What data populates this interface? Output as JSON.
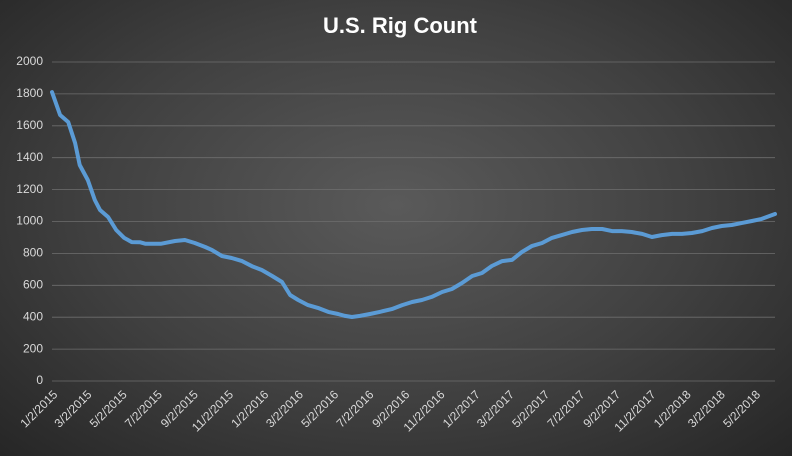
{
  "chart_data": {
    "type": "line",
    "title": "U.S. Rig Count",
    "x": [
      "1/2/2015",
      "1/16/2015",
      "1/30/2015",
      "2/11/2015",
      "2/19/2015",
      "3/5/2015",
      "3/17/2015",
      "3/26/2015",
      "4/9/2015",
      "4/23/2015",
      "5/7/2015",
      "5/20/2015",
      "6/3/2015",
      "6/13/2015",
      "7/9/2015",
      "8/3/2015",
      "8/20/2015",
      "9/6/2015",
      "9/24/2015",
      "10/6/2015",
      "10/23/2015",
      "11/9/2015",
      "11/27/2015",
      "12/14/2015",
      "12/31/2015",
      "1/18/2016",
      "2/4/2016",
      "2/18/2016",
      "3/3/2016",
      "3/20/2016",
      "4/6/2016",
      "4/24/2016",
      "5/11/2016",
      "5/23/2016",
      "6/4/2016",
      "6/18/2016",
      "7/5/2016",
      "7/22/2016",
      "8/12/2016",
      "8/30/2016",
      "9/16/2016",
      "10/3/2016",
      "10/20/2016",
      "11/7/2016",
      "11/24/2016",
      "12/11/2016",
      "12/29/2016",
      "1/15/2017",
      "2/1/2017",
      "2/19/2017",
      "3/8/2017",
      "3/25/2017",
      "4/11/2017",
      "4/29/2017",
      "5/16/2017",
      "6/2/2017",
      "6/20/2017",
      "7/7/2017",
      "7/24/2017",
      "8/11/2017",
      "8/28/2017",
      "9/14/2017",
      "10/1/2017",
      "10/19/2017",
      "11/5/2017",
      "11/22/2017",
      "12/10/2017",
      "12/27/2017",
      "1/13/2018",
      "1/31/2018",
      "2/17/2018",
      "3/6/2018",
      "3/23/2018",
      "4/10/2018",
      "4/27/2018",
      "5/14/2018",
      "6/6/2018"
    ],
    "series": [
      {
        "name": "U.S. Rig Count",
        "color": "#5b9bd5",
        "values": [
          1811,
          1668,
          1624,
          1492,
          1354,
          1260,
          1135,
          1072,
          1028,
          947,
          897,
          871,
          870,
          860,
          860,
          878,
          884,
          865,
          840,
          821,
          784,
          771,
          752,
          720,
          696,
          658,
          621,
          539,
          508,
          476,
          458,
          433,
          420,
          408,
          401,
          408,
          420,
          433,
          451,
          476,
          495,
          508,
          527,
          558,
          577,
          614,
          658,
          677,
          721,
          752,
          759,
          809,
          846,
          865,
          897,
          915,
          934,
          947,
          953,
          953,
          940,
          940,
          934,
          922,
          903,
          915,
          922,
          922,
          928,
          940,
          959,
          972,
          978,
          991,
          1003,
          1016,
          1047
        ]
      }
    ],
    "xlim": [
      "1/2/2015",
      "6/6/2018"
    ],
    "xticks": [
      "1/2/2015",
      "3/2/2015",
      "5/2/2015",
      "7/2/2015",
      "9/2/2015",
      "11/2/2015",
      "1/2/2016",
      "3/2/2016",
      "5/2/2016",
      "7/2/2016",
      "9/2/2016",
      "11/2/2016",
      "1/2/2017",
      "3/2/2017",
      "5/2/2017",
      "7/2/2017",
      "9/2/2017",
      "11/2/2017",
      "1/2/2018",
      "3/2/2018",
      "5/2/2018"
    ],
    "ylim": [
      0,
      2000
    ],
    "yticks": [
      0,
      200,
      400,
      600,
      800,
      1000,
      1200,
      1400,
      1600,
      1800,
      2000
    ],
    "grid": true
  }
}
